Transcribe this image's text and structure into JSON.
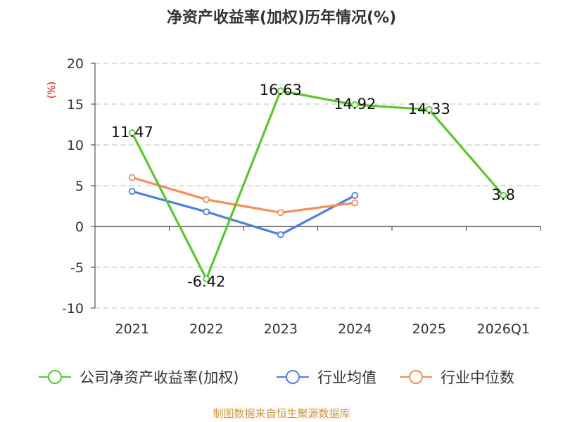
{
  "chart_data": {
    "type": "line",
    "title": "净资产收益率(加权)历年情况(%)",
    "unit_label": "(%)",
    "categories": [
      "2021",
      "2022",
      "2023",
      "2024",
      "2025",
      "2026Q1"
    ],
    "ylim": [
      -10,
      20
    ],
    "yticks": [
      20,
      15,
      10,
      5,
      0,
      -5,
      -10
    ],
    "grid": true,
    "legend_position": "bottom",
    "series": [
      {
        "name": "公司净资产收益率(加权)",
        "color": "#5cc630",
        "values": [
          11.47,
          -6.42,
          16.63,
          14.92,
          14.33,
          3.8
        ],
        "labels": [
          "11.47",
          "-6.42",
          "16.63",
          "14.92",
          "14.33",
          "3.8"
        ]
      },
      {
        "name": "行业均值",
        "color": "#4e7fdc",
        "values": [
          4.3,
          1.8,
          -1.0,
          3.8,
          null,
          null
        ]
      },
      {
        "name": "行业中位数",
        "color": "#f58d5c",
        "values": [
          6.0,
          3.3,
          1.7,
          2.9,
          null,
          null
        ]
      }
    ]
  },
  "source_text": "制图数据来自恒生聚源数据库"
}
